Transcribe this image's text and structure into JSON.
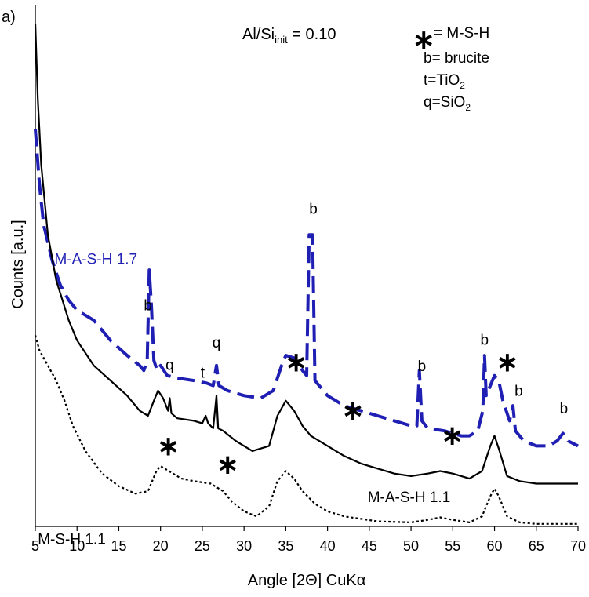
{
  "chart_data": {
    "type": "line",
    "panel_label": "a)",
    "xlabel": "Angle [2Θ] CuKα",
    "ylabel": "Counts [a.u.]",
    "xlim": [
      5,
      70
    ],
    "xticks": [
      5,
      10,
      15,
      20,
      25,
      30,
      35,
      40,
      45,
      50,
      55,
      60,
      65,
      70
    ],
    "ylim": [
      0,
      100
    ],
    "grid": false,
    "title": {
      "main": "Al/Si",
      "sub": "init",
      "tail": " = 0.10"
    },
    "legend": {
      "symbol": "∗",
      "rows": [
        {
          "main": "= M-S-H",
          "sub": ""
        },
        {
          "main": "b= brucite",
          "sub": ""
        },
        {
          "main": "t=TiO",
          "sub": "2"
        },
        {
          "main": "q=SiO",
          "sub": "2"
        }
      ]
    },
    "colors": {
      "blue": "#1f1fb4",
      "black": "#000000"
    },
    "series": [
      {
        "name": "M-A-S-H 1.7",
        "color": "#1f1fb4",
        "style": "long-dash",
        "points": [
          [
            5,
            79
          ],
          [
            5.5,
            68
          ],
          [
            6,
            60
          ],
          [
            7,
            53
          ],
          [
            8,
            48
          ],
          [
            9,
            45
          ],
          [
            10,
            43
          ],
          [
            12,
            41
          ],
          [
            14,
            37
          ],
          [
            16,
            34
          ],
          [
            17.5,
            32
          ],
          [
            18,
            31
          ],
          [
            18.4,
            33
          ],
          [
            18.65,
            51
          ],
          [
            18.9,
            44
          ],
          [
            19.2,
            33
          ],
          [
            19.6,
            31
          ],
          [
            20,
            32
          ],
          [
            20.8,
            30
          ],
          [
            22,
            29.5
          ],
          [
            24,
            29
          ],
          [
            25.5,
            28.5
          ],
          [
            26.3,
            28
          ],
          [
            26.7,
            32
          ],
          [
            27,
            28
          ],
          [
            28,
            27
          ],
          [
            30,
            26
          ],
          [
            32,
            25.5
          ],
          [
            33.5,
            27
          ],
          [
            34.5,
            32
          ],
          [
            35,
            34
          ],
          [
            36,
            33.5
          ],
          [
            37,
            31
          ],
          [
            37.5,
            30
          ],
          [
            37.8,
            58
          ],
          [
            38.2,
            58
          ],
          [
            38.5,
            29
          ],
          [
            40,
            26
          ],
          [
            42,
            24
          ],
          [
            44,
            23
          ],
          [
            46,
            22
          ],
          [
            48,
            21
          ],
          [
            50,
            20
          ],
          [
            50.7,
            20
          ],
          [
            51.0,
            31
          ],
          [
            51.3,
            21
          ],
          [
            52,
            19.5
          ],
          [
            54,
            19
          ],
          [
            56,
            18
          ],
          [
            57,
            18
          ],
          [
            58,
            19
          ],
          [
            58.6,
            23
          ],
          [
            58.8,
            34
          ],
          [
            59.0,
            26
          ],
          [
            59.5,
            28
          ],
          [
            60,
            30
          ],
          [
            60.5,
            29
          ],
          [
            61,
            25
          ],
          [
            61.8,
            21
          ],
          [
            62.2,
            24
          ],
          [
            62.5,
            19
          ],
          [
            63.5,
            17
          ],
          [
            65,
            16
          ],
          [
            66.5,
            16
          ],
          [
            67.5,
            17
          ],
          [
            68.2,
            18.5
          ],
          [
            68.8,
            17
          ],
          [
            70,
            16
          ]
        ]
      },
      {
        "name": "M-A-S-H 1.1",
        "color": "#000000",
        "style": "solid",
        "points": [
          [
            5,
            100
          ],
          [
            5.3,
            85
          ],
          [
            5.7,
            72
          ],
          [
            6.5,
            58
          ],
          [
            7.5,
            49
          ],
          [
            9,
            41
          ],
          [
            10,
            37
          ],
          [
            12,
            32
          ],
          [
            14,
            29
          ],
          [
            16,
            26
          ],
          [
            17.5,
            23
          ],
          [
            18.5,
            22
          ],
          [
            19.2,
            25
          ],
          [
            19.7,
            27
          ],
          [
            20.3,
            25.5
          ],
          [
            20.9,
            23
          ],
          [
            21.1,
            25.5
          ],
          [
            21.3,
            22.5
          ],
          [
            22,
            21.5
          ],
          [
            24,
            21
          ],
          [
            25,
            20.5
          ],
          [
            25.4,
            22
          ],
          [
            25.7,
            20.5
          ],
          [
            26.3,
            19.5
          ],
          [
            26.7,
            26
          ],
          [
            26.9,
            19.5
          ],
          [
            27.5,
            19
          ],
          [
            29,
            17
          ],
          [
            31,
            15
          ],
          [
            33,
            16
          ],
          [
            34,
            22
          ],
          [
            35,
            25
          ],
          [
            36,
            23
          ],
          [
            37,
            20
          ],
          [
            38,
            18
          ],
          [
            40,
            16
          ],
          [
            42,
            14
          ],
          [
            44,
            12.5
          ],
          [
            46,
            11.5
          ],
          [
            48,
            10.5
          ],
          [
            50,
            10
          ],
          [
            52,
            10.5
          ],
          [
            53.5,
            11
          ],
          [
            55,
            10.5
          ],
          [
            57,
            9.5
          ],
          [
            58.5,
            11
          ],
          [
            59.5,
            16
          ],
          [
            60,
            18
          ],
          [
            60.5,
            15.5
          ],
          [
            61.5,
            10
          ],
          [
            63,
            9
          ],
          [
            65,
            8.5
          ],
          [
            67,
            8.5
          ],
          [
            70,
            8.5
          ]
        ]
      },
      {
        "name": "M-S-H 1.1",
        "color": "#000000",
        "style": "dotted",
        "points": [
          [
            5,
            38
          ],
          [
            5.5,
            35
          ],
          [
            6.5,
            32
          ],
          [
            7.5,
            29
          ],
          [
            8.5,
            25
          ],
          [
            9.5,
            20
          ],
          [
            11,
            15
          ],
          [
            13,
            10.5
          ],
          [
            15,
            8
          ],
          [
            17,
            6.5
          ],
          [
            18.5,
            7
          ],
          [
            19.5,
            11
          ],
          [
            20,
            12
          ],
          [
            21,
            11
          ],
          [
            22.5,
            9.5
          ],
          [
            24,
            9
          ],
          [
            26,
            8.5
          ],
          [
            27.5,
            7
          ],
          [
            28.5,
            5
          ],
          [
            30,
            3
          ],
          [
            31.5,
            2
          ],
          [
            33,
            4
          ],
          [
            34,
            9
          ],
          [
            35,
            11
          ],
          [
            36,
            9.5
          ],
          [
            37,
            7
          ],
          [
            38.5,
            4.5
          ],
          [
            40,
            3
          ],
          [
            42,
            2
          ],
          [
            44,
            1.5
          ],
          [
            46,
            1
          ],
          [
            50,
            0.8
          ],
          [
            52,
            1.3
          ],
          [
            53.5,
            1.8
          ],
          [
            55,
            1.3
          ],
          [
            57,
            0.8
          ],
          [
            58.5,
            2
          ],
          [
            59.5,
            6
          ],
          [
            60,
            7.5
          ],
          [
            60.5,
            6
          ],
          [
            61.5,
            2
          ],
          [
            63,
            0.8
          ],
          [
            65,
            0.5
          ],
          [
            70,
            0.5
          ]
        ]
      }
    ],
    "annotations": [
      {
        "text": "M-A-S-H 1.7",
        "x": 7.3,
        "y": 52.2,
        "color": "#1f1fb4",
        "size": "medium"
      },
      {
        "text": "M-A-S-H 1.1",
        "x": 44.8,
        "y": 4.8,
        "color": "#000000",
        "size": "medium"
      },
      {
        "text": "M-S-H 1.1",
        "x": 5.3,
        "y": -3.5,
        "color": "#000000",
        "size": "medium"
      },
      {
        "text": "b",
        "x": 37.8,
        "y": 62.2,
        "color": "#000000",
        "size": "medium"
      },
      {
        "text": "b",
        "x": 18.0,
        "y": 43.0,
        "color": "#000000",
        "size": "medium"
      },
      {
        "text": "q",
        "x": 26.2,
        "y": 35.6,
        "color": "#000000",
        "size": "medium"
      },
      {
        "text": "q",
        "x": 20.6,
        "y": 31.1,
        "color": "#000000",
        "size": "medium"
      },
      {
        "text": "t",
        "x": 24.8,
        "y": 29.6,
        "color": "#000000",
        "size": "medium"
      },
      {
        "text": "∗",
        "x": 34.9,
        "y": 30.9,
        "color": "#000000",
        "size": "large"
      },
      {
        "text": "b",
        "x": 50.8,
        "y": 30.9,
        "color": "#000000",
        "size": "medium"
      },
      {
        "text": "b",
        "x": 58.3,
        "y": 36.1,
        "color": "#000000",
        "size": "medium"
      },
      {
        "text": "∗",
        "x": 60.2,
        "y": 30.9,
        "color": "#000000",
        "size": "large"
      },
      {
        "text": "b",
        "x": 62.4,
        "y": 26.0,
        "color": "#000000",
        "size": "medium"
      },
      {
        "text": "b",
        "x": 67.8,
        "y": 22.5,
        "color": "#000000",
        "size": "medium"
      },
      {
        "text": "∗",
        "x": 41.7,
        "y": 21.3,
        "color": "#000000",
        "size": "large"
      },
      {
        "text": "∗",
        "x": 53.6,
        "y": 16.3,
        "color": "#000000",
        "size": "large"
      },
      {
        "text": "∗",
        "x": 19.6,
        "y": 14.2,
        "color": "#000000",
        "size": "large"
      },
      {
        "text": "∗",
        "x": 26.7,
        "y": 10.5,
        "color": "#000000",
        "size": "large"
      }
    ]
  }
}
